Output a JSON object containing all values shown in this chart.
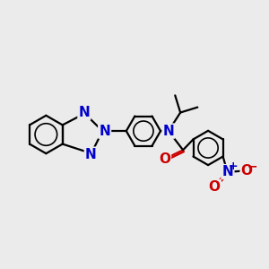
{
  "background_color": "#ebebeb",
  "bond_color": "#000000",
  "nitrogen_color": "#0000cc",
  "oxygen_color": "#cc0000",
  "bond_width": 1.6,
  "font_size_atoms": 11,
  "font_size_charge": 8,
  "fig_width": 3.0,
  "fig_height": 3.0,
  "dpi": 100,
  "xlim": [
    0,
    10
  ],
  "ylim": [
    0,
    10
  ]
}
